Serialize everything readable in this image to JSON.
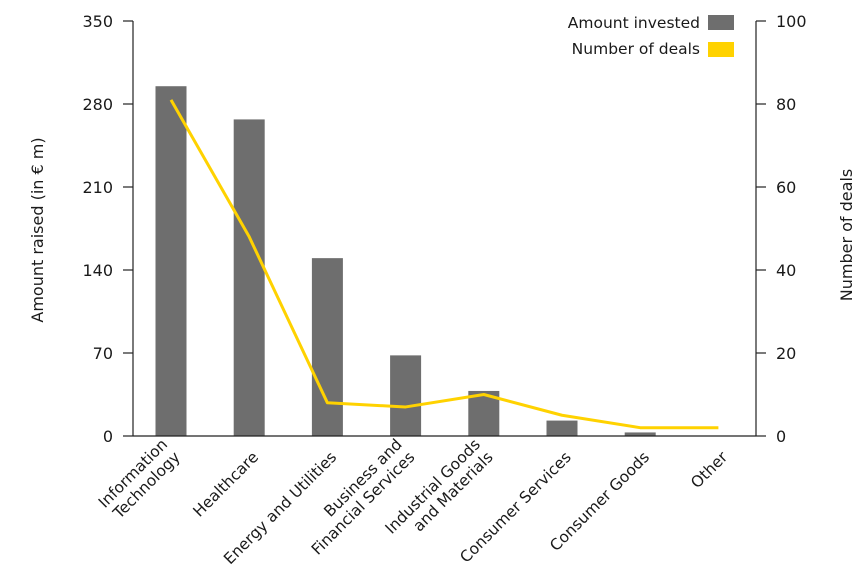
{
  "chart_data": {
    "type": "bar",
    "categories": [
      "Information Technology",
      "Healthcare",
      "Energy and Utilities",
      "Business and Financial Services",
      "Industrial Goods and Materials",
      "Consumer Services",
      "Consumer Goods",
      "Other"
    ],
    "category_lines": [
      [
        "Information",
        "Technology"
      ],
      [
        "Healthcare"
      ],
      [
        "Energy and Utilities"
      ],
      [
        "Business and",
        "Financial Services"
      ],
      [
        "Industrial Goods",
        "and Materials"
      ],
      [
        "Consumer Services"
      ],
      [
        "Consumer Goods"
      ],
      [
        "Other"
      ]
    ],
    "series": [
      {
        "name": "Amount invested",
        "type": "bar",
        "axis": "left",
        "color": "#6e6e6e",
        "values": [
          295,
          267,
          150,
          68,
          38,
          13,
          3,
          0
        ]
      },
      {
        "name": "Number of deals",
        "type": "line",
        "axis": "right",
        "color": "#ffd200",
        "values": [
          81,
          48,
          8,
          7,
          10,
          5,
          2,
          2
        ]
      }
    ],
    "ylabel": "Amount raised (in € m)",
    "ylabel_right": "Number of deals",
    "ylim": [
      0,
      350
    ],
    "yticks": [
      0,
      70,
      140,
      210,
      280,
      350
    ],
    "ylim_right": [
      0,
      100
    ],
    "yticks_right": [
      0,
      20,
      40,
      60,
      80,
      100
    ],
    "legend": {
      "placement": "top-right",
      "entries": [
        "Amount invested",
        "Number of deals"
      ]
    },
    "grid": false
  }
}
